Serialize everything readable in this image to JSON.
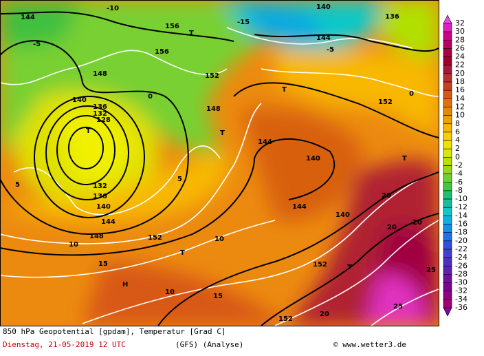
{
  "header": {
    "title": "850 hPa Geopotential [gpdam], Temperatur [Grad C]",
    "date": "Dienstag, 21-05-2019  12 UTC",
    "model": "(GFS)  (Analyse)",
    "source": "© www.wetter3.de"
  },
  "colorbar": {
    "levels": [
      32,
      30,
      28,
      26,
      24,
      22,
      20,
      18,
      16,
      14,
      12,
      10,
      8,
      6,
      4,
      2,
      0,
      -2,
      -4,
      -6,
      -8,
      -10,
      -12,
      -14,
      -16,
      -18,
      -20,
      -22,
      -24,
      -26,
      -28,
      -30,
      -32,
      -34,
      -36
    ],
    "colors": [
      "#ee44ee",
      "#dd22bb",
      "#cc0088",
      "#b80060",
      "#a80040",
      "#a00030",
      "#a81838",
      "#b83030",
      "#c84020",
      "#d85818",
      "#e07010",
      "#e88808",
      "#f0a000",
      "#f8b800",
      "#f8d000",
      "#f0e000",
      "#d8e800",
      "#b8e000",
      "#98d818",
      "#70d030",
      "#40c840",
      "#20c070",
      "#10c0a0",
      "#10c8c8",
      "#10b0e0",
      "#1090e8",
      "#2070e8",
      "#3050e0",
      "#4040d0",
      "#5030c0",
      "#6020b0",
      "#7010a0",
      "#800090",
      "#900080",
      "#a00070",
      "#8800aa"
    ]
  },
  "map": {
    "labels": [
      "144",
      "140",
      "136",
      "132",
      "128",
      "T",
      "132",
      "136",
      "140",
      "144",
      "148",
      "152",
      "148",
      "152",
      "140",
      "144",
      "144",
      "140",
      "144",
      "148",
      "152",
      "152",
      "152",
      "136",
      "140",
      "0",
      "0",
      "-5",
      "-10",
      "-15",
      "-5",
      "5",
      "5",
      "10",
      "10",
      "10",
      "15",
      "15",
      "20",
      "20",
      "20",
      "25",
      "25",
      "20",
      "T",
      "T",
      "T",
      "T",
      "T",
      "T",
      "H",
      "156",
      "156"
    ]
  }
}
